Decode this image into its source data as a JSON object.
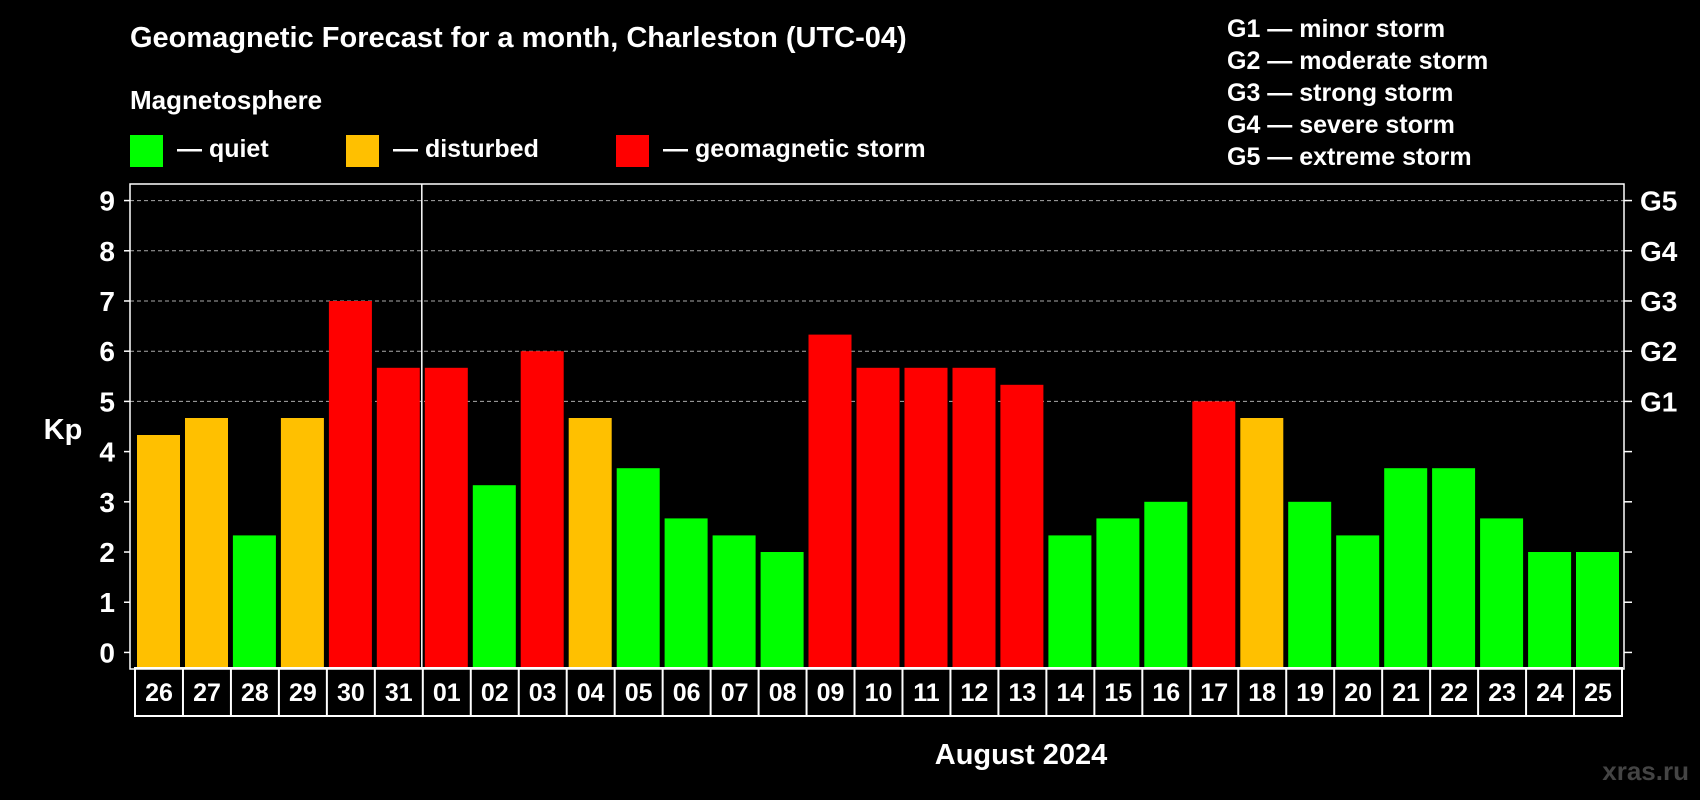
{
  "chart_data": {
    "type": "bar",
    "title": "Geomagnetic Forecast for a month, Charleston (UTC-04)",
    "legend_title": "Magnetosphere",
    "legend": [
      {
        "key": "quiet",
        "label": "— quiet",
        "color": "#00ff00"
      },
      {
        "key": "disturbed",
        "label": "— disturbed",
        "color": "#ffc000"
      },
      {
        "key": "storm",
        "label": "— geomagnetic storm",
        "color": "#ff0000"
      }
    ],
    "storm_scale": [
      "G1 — minor storm",
      "G2 — moderate storm",
      "G3 — strong storm",
      "G4 — severe storm",
      "G5 — extreme storm"
    ],
    "ylabel": "Kp",
    "ylim": [
      -0.33,
      9.33
    ],
    "yticks": [
      0,
      1,
      2,
      3,
      4,
      5,
      6,
      7,
      8,
      9
    ],
    "right_axis_labels": [
      {
        "value": 5,
        "label": "G1"
      },
      {
        "value": 6,
        "label": "G2"
      },
      {
        "value": 7,
        "label": "G3"
      },
      {
        "value": 8,
        "label": "G4"
      },
      {
        "value": 9,
        "label": "G5"
      }
    ],
    "grid": true,
    "xlabel": "August 2024",
    "month_divider_after_index": 5,
    "categories": [
      "26",
      "27",
      "28",
      "29",
      "30",
      "31",
      "01",
      "02",
      "03",
      "04",
      "05",
      "06",
      "07",
      "08",
      "09",
      "10",
      "11",
      "12",
      "13",
      "14",
      "15",
      "16",
      "17",
      "18",
      "19",
      "20",
      "21",
      "22",
      "23",
      "24",
      "25"
    ],
    "values": [
      4.33,
      4.67,
      2.33,
      4.67,
      7.0,
      5.67,
      5.67,
      3.33,
      6.0,
      4.67,
      3.67,
      2.67,
      2.33,
      2.0,
      6.33,
      5.67,
      5.67,
      5.67,
      5.33,
      2.33,
      2.67,
      3.0,
      5.0,
      4.67,
      3.0,
      2.33,
      3.67,
      3.67,
      2.67,
      2.0,
      2.0
    ],
    "levels": [
      "disturbed",
      "disturbed",
      "quiet",
      "disturbed",
      "storm",
      "storm",
      "storm",
      "quiet",
      "storm",
      "disturbed",
      "quiet",
      "quiet",
      "quiet",
      "quiet",
      "storm",
      "storm",
      "storm",
      "storm",
      "storm",
      "quiet",
      "quiet",
      "quiet",
      "storm",
      "disturbed",
      "quiet",
      "quiet",
      "quiet",
      "quiet",
      "quiet",
      "quiet",
      "quiet"
    ]
  },
  "watermark": "xras.ru"
}
